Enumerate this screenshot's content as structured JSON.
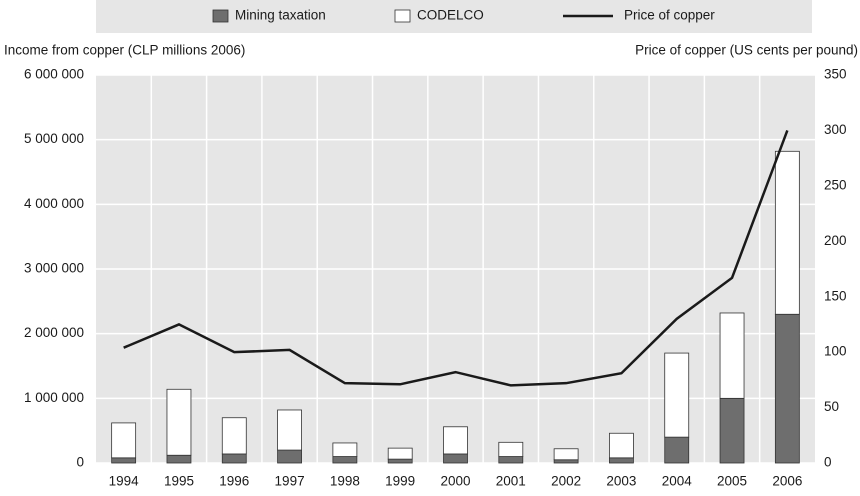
{
  "chart_data": {
    "type": "bar",
    "stacked": true,
    "grid": true,
    "ylabel": "Income from copper (CLP millions 2006)",
    "y2label": "Price of copper (US cents per pound)",
    "categories": [
      "1994",
      "1995",
      "1996",
      "1997",
      "1998",
      "1999",
      "2000",
      "2001",
      "2002",
      "2003",
      "2004",
      "2005",
      "2006"
    ],
    "series": [
      {
        "name": "Mining taxation",
        "color": "#6e6e6e",
        "values": [
          80000,
          120000,
          140000,
          200000,
          100000,
          60000,
          140000,
          100000,
          50000,
          80000,
          400000,
          1000000,
          2300000
        ]
      },
      {
        "name": "CODELCO",
        "color": "#ffffff",
        "values": [
          540000,
          1020000,
          560000,
          620000,
          210000,
          170000,
          420000,
          220000,
          170000,
          380000,
          1300000,
          1320000,
          2520000
        ]
      },
      {
        "name": "Price of copper",
        "type": "line",
        "axis": "y2",
        "color": "#1a1a1a",
        "values": [
          104,
          125,
          100,
          102,
          72,
          71,
          82,
          70,
          72,
          81,
          130,
          167,
          300
        ]
      }
    ],
    "ylim": [
      0,
      6000000
    ],
    "yticks": [
      {
        "value": 0,
        "label": "0"
      },
      {
        "value": 1000000,
        "label": "1 000 000"
      },
      {
        "value": 2000000,
        "label": "2 000 000"
      },
      {
        "value": 3000000,
        "label": "3 000 000"
      },
      {
        "value": 4000000,
        "label": "4 000 000"
      },
      {
        "value": 5000000,
        "label": "5 000 000"
      },
      {
        "value": 6000000,
        "label": "6 000 000"
      }
    ],
    "y2lim": [
      0,
      350
    ],
    "y2ticks": [
      0,
      50,
      100,
      150,
      200,
      250,
      300,
      350
    ]
  }
}
